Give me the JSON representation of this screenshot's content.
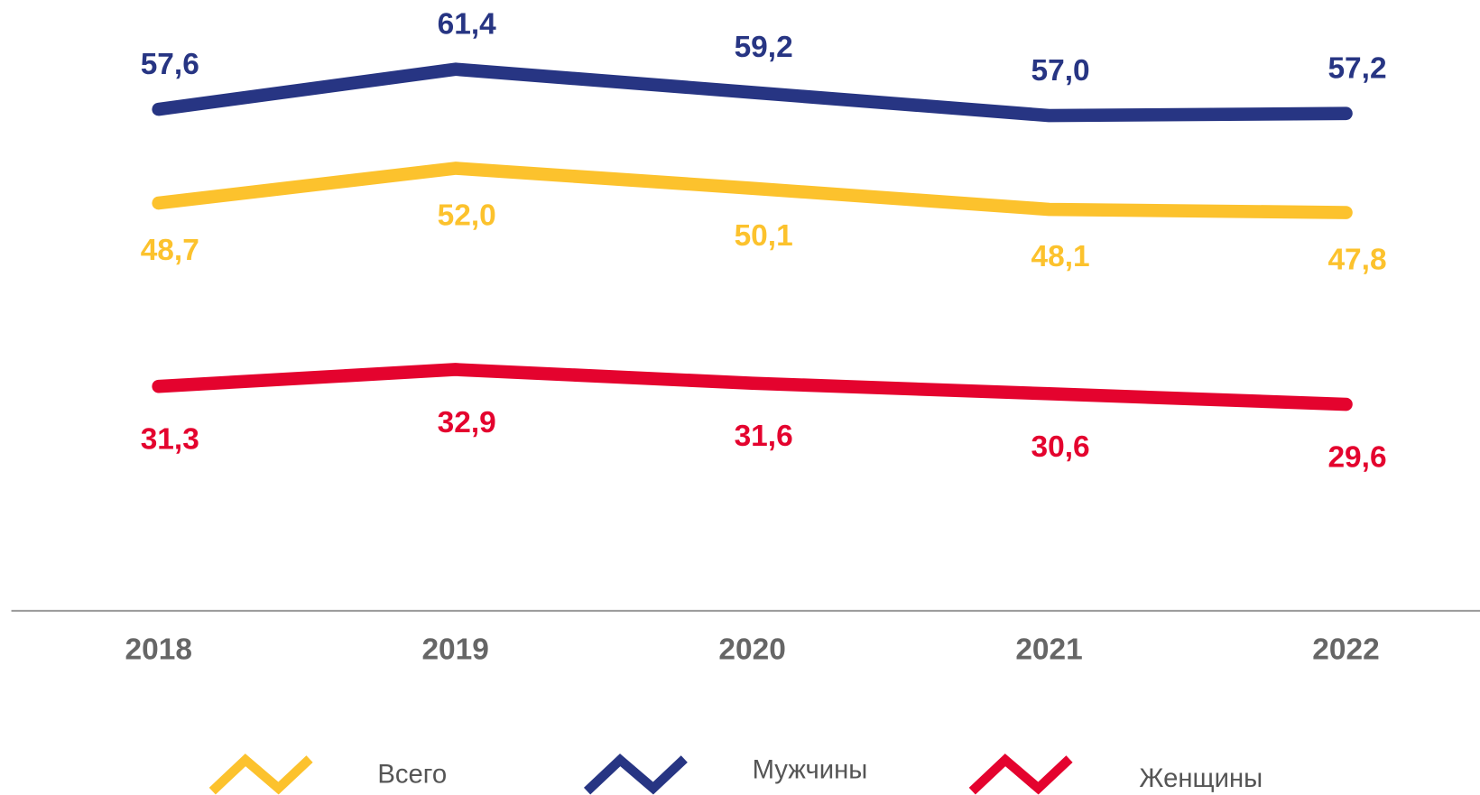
{
  "chart_data": {
    "type": "line",
    "categories": [
      "2018",
      "2019",
      "2020",
      "2021",
      "2022"
    ],
    "ylim": [
      10,
      65
    ],
    "series": [
      {
        "name": "Всего",
        "color": "#fcc22d",
        "values": [
          48.7,
          52.0,
          50.1,
          48.1,
          47.8
        ],
        "value_labels": [
          "48,7",
          "52,0",
          "50,1",
          "48,1",
          "47,8"
        ]
      },
      {
        "name": "Мужчины",
        "color": "#273583",
        "values": [
          57.6,
          61.4,
          59.2,
          57.0,
          57.2
        ],
        "value_labels": [
          "57,6",
          "61,4",
          "59,2",
          "57,0",
          "57,2"
        ]
      },
      {
        "name": "Женщины",
        "color": "#e4032e",
        "values": [
          31.3,
          32.9,
          31.6,
          30.6,
          29.6
        ],
        "value_labels": [
          "31,3",
          "32,9",
          "31,6",
          "30,6",
          "29,6"
        ]
      }
    ]
  }
}
